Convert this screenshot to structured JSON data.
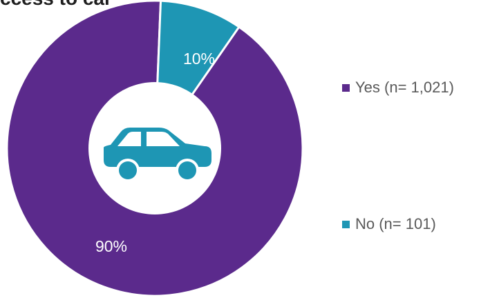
{
  "title": "ccess to car",
  "icon": "car-icon",
  "colors": {
    "yes": "#5B2A8C",
    "no": "#1E96B4",
    "center": "#ffffff",
    "icon": "#1E96B4"
  },
  "chart_data": {
    "type": "pie",
    "donut": true,
    "title": "ccess to car",
    "categories": [
      "Yes (n= 1,021)",
      "No (n= 101)"
    ],
    "values": [
      1021,
      101
    ],
    "percent_labels": [
      "90%",
      "10%"
    ],
    "legend_position": "right",
    "series": [
      {
        "label": "Yes (n= 1,021)",
        "value": 1021,
        "percent_label": "90%",
        "color": "#5B2A8C"
      },
      {
        "label": "No (n= 101)",
        "value": 101,
        "percent_label": "10%",
        "color": "#1E96B4"
      }
    ]
  }
}
